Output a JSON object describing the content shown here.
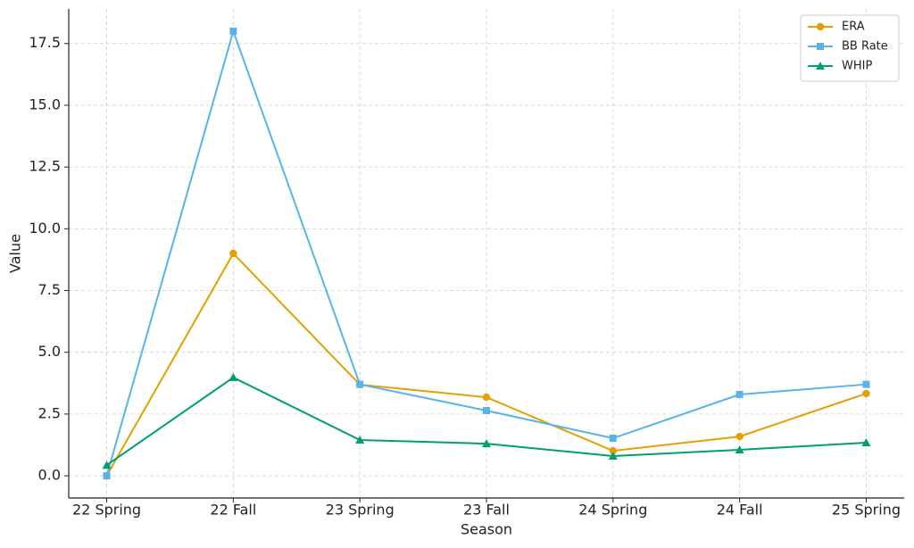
{
  "chart_data": {
    "type": "line",
    "x_label": "Season",
    "y_label": "Value",
    "categories": [
      "22 Spring",
      "22 Fall",
      "23 Spring",
      "23 Fall",
      "24 Spring",
      "24 Fall",
      "25 Spring"
    ],
    "series": [
      {
        "name": "ERA",
        "color": "#e69f00",
        "marker": "circle",
        "values": [
          0,
          9.0,
          3.69,
          3.18,
          1.01,
          1.59,
          3.33
        ]
      },
      {
        "name": "BB Rate",
        "color": "#56b4e9",
        "marker": "square",
        "values": [
          0,
          18.0,
          3.7,
          2.64,
          1.52,
          3.29,
          3.7
        ]
      },
      {
        "name": "WHIP",
        "color": "#009e73",
        "marker": "triangle",
        "values": [
          0.43,
          3.98,
          1.45,
          1.3,
          0.8,
          1.05,
          1.34
        ]
      }
    ],
    "ylim": [
      -0.9,
      18.9
    ],
    "yticks": [
      {
        "value": 0,
        "label": "0.0"
      },
      2.5,
      {
        "value": 5,
        "label": "5.0"
      },
      7.5,
      {
        "value": 10,
        "label": "10.0"
      },
      12.5,
      {
        "value": 15,
        "label": "15.0"
      },
      17.5
    ],
    "grid": true,
    "legend": "upper right"
  }
}
